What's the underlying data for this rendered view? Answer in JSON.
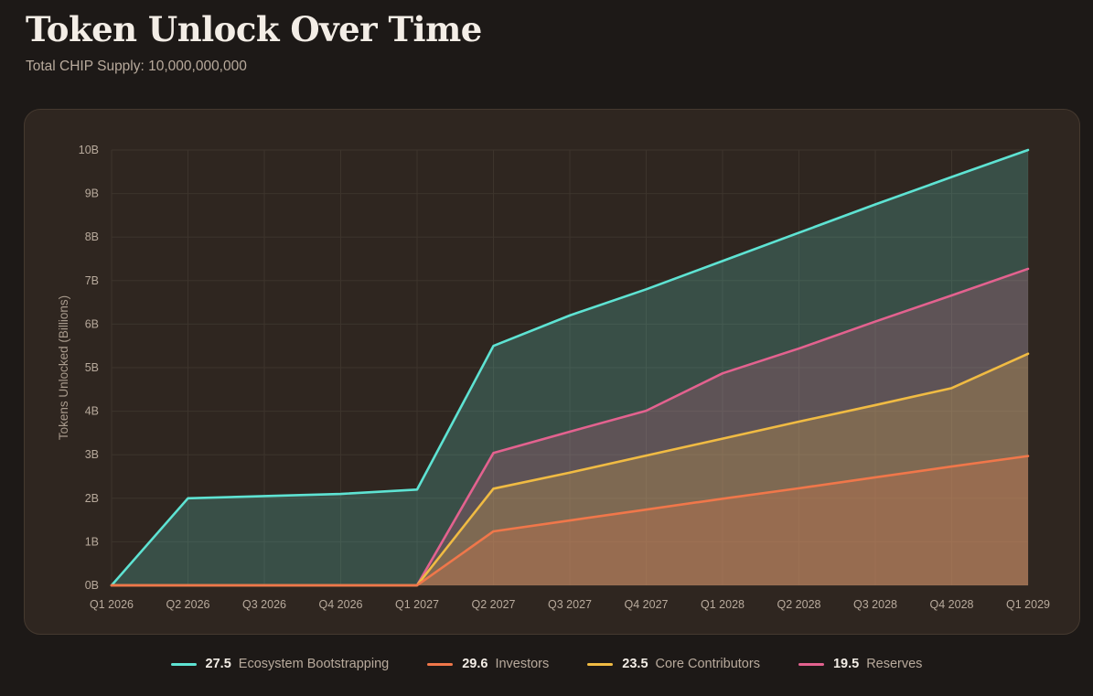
{
  "header": {
    "title": "Token Unlock Over Time",
    "subtitle": "Total CHIP Supply: 10,000,000,000"
  },
  "colors": {
    "background": "#1d1917",
    "panel": "#2f2620",
    "ecosystem": "#5ee3d3",
    "investors": "#f0774a",
    "contributors": "#f0bb43",
    "reserves": "#e3628f"
  },
  "chart_data": {
    "type": "area",
    "stacked": true,
    "title": "Token Unlock Over Time",
    "subtitle": "Total CHIP Supply: 10,000,000,000",
    "xlabel": "",
    "ylabel": "Tokens Unlocked (Billions)",
    "x": [
      "Q1 2026",
      "Q2 2026",
      "Q3 2026",
      "Q4 2026",
      "Q1 2027",
      "Q2 2027",
      "Q3 2027",
      "Q4 2027",
      "Q1 2028",
      "Q2 2028",
      "Q3 2028",
      "Q4 2028",
      "Q1 2029"
    ],
    "ylim": [
      0,
      10
    ],
    "y_ticks": [
      "0B",
      "1B",
      "2B",
      "3B",
      "4B",
      "5B",
      "6B",
      "7B",
      "8B",
      "9B",
      "10B"
    ],
    "grid": true,
    "legend_position": "bottom",
    "series": [
      {
        "name": "Investors",
        "key": "investors",
        "legend_value": "29.6",
        "values": [
          0,
          0,
          0,
          0,
          0,
          1.24,
          1.49,
          1.74,
          1.99,
          2.23,
          2.48,
          2.73,
          2.97
        ]
      },
      {
        "name": "Core Contributors",
        "key": "contributors",
        "legend_value": "23.5",
        "values": [
          0,
          0,
          0,
          0,
          0,
          2.22,
          2.59,
          2.98,
          3.37,
          3.76,
          4.14,
          4.53,
          5.32
        ]
      },
      {
        "name": "Reserves",
        "key": "reserves",
        "legend_value": "19.5",
        "values": [
          0,
          0,
          0,
          0,
          0,
          3.04,
          3.53,
          4.01,
          4.87,
          5.44,
          6.06,
          6.66,
          7.27
        ]
      },
      {
        "name": "Ecosystem Bootstrapping",
        "key": "ecosystem",
        "legend_value": "27.5",
        "values": [
          0,
          2.0,
          2.05,
          2.1,
          2.2,
          5.5,
          6.2,
          6.8,
          7.45,
          8.1,
          8.75,
          9.38,
          10.0
        ]
      }
    ]
  },
  "legend": [
    {
      "value": "27.5",
      "label": "Ecosystem Bootstrapping",
      "color": "#5ee3d3"
    },
    {
      "value": "29.6",
      "label": "Investors",
      "color": "#f0774a"
    },
    {
      "value": "23.5",
      "label": "Core Contributors",
      "color": "#f0bb43"
    },
    {
      "value": "19.5",
      "label": "Reserves",
      "color": "#e3628f"
    }
  ]
}
